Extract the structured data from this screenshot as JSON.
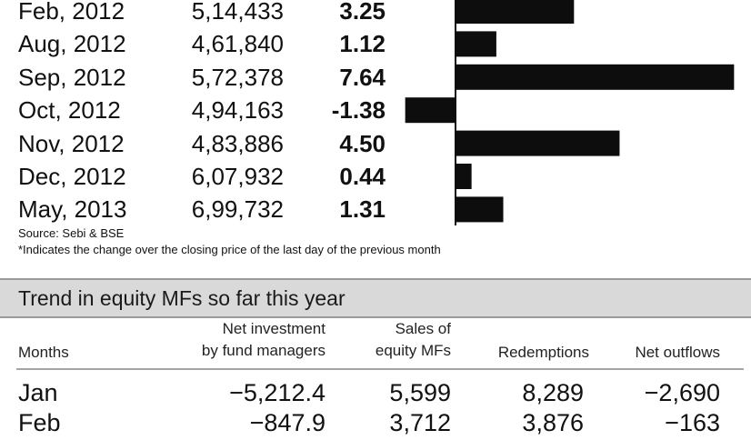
{
  "chart_data": {
    "type": "bar",
    "orientation": "horizontal",
    "categories": [
      "Feb, 2012",
      "Aug, 2012",
      "Sep, 2012",
      "Oct, 2012",
      "Nov, 2012",
      "Dec, 2012",
      "May, 2013"
    ],
    "values_label": [
      "5,14,433",
      "4,61,840",
      "5,72,378",
      "4,94,163",
      "4,83,886",
      "6,07,932",
      "6,99,732"
    ],
    "pct_label": [
      "3.25",
      "1.12",
      "7.64",
      "-1.38",
      "4.50",
      "0.44",
      "1.31"
    ],
    "pct": [
      3.25,
      1.12,
      7.64,
      -1.38,
      4.5,
      0.44,
      1.31
    ]
  },
  "source": "Source: Sebi & BSE",
  "footnote": "*Indicates  the change over the closing price of the last day of the previous month",
  "mf_table": {
    "title": "Trend in equity MFs so far this year",
    "headers": {
      "months": "Months",
      "net_investment": [
        "Net investment",
        "by fund managers"
      ],
      "sales": [
        "Sales of",
        "equity MFs"
      ],
      "redemptions": "Redemptions",
      "net_outflows": "Net outflows"
    },
    "rows": [
      {
        "month": "Jan",
        "net_investment": "−5,212.4",
        "sales": "5,599",
        "redemptions": "8,289",
        "net_outflows": "−2,690"
      },
      {
        "month": "Feb",
        "net_investment": "−847.9",
        "sales": "3,712",
        "redemptions": "3,876",
        "net_outflows": "−163"
      }
    ]
  }
}
